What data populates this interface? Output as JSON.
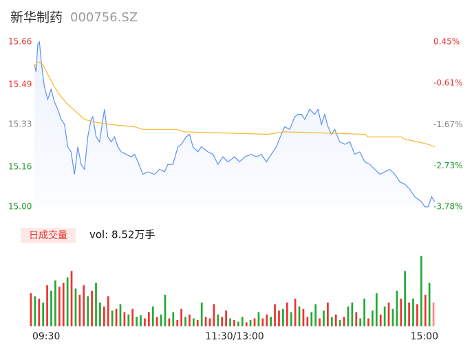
{
  "title": "新华制药",
  "code": "000756.SZ",
  "volume_button": "日成交量",
  "vol_text": "vol: 8.52万手",
  "chart_data": [
    {
      "type": "line",
      "xlim": [
        0,
        240
      ],
      "xticks": [
        {
          "value": 0,
          "label": "09:30"
        },
        {
          "value": 120,
          "label": "11:30/13:00"
        },
        {
          "value": 240,
          "label": "15:00"
        }
      ],
      "ylim": [
        15.0,
        15.66
      ],
      "yticks": [
        15.66,
        15.49,
        15.33,
        15.16,
        {
          "value": 15.0,
          "label": "15.00"
        }
      ],
      "y2lim": [
        -3.78,
        0.45
      ],
      "y2ticks": [
        {
          "value": 0.45,
          "label": "0.45%"
        },
        {
          "value": -0.61,
          "label": "-0.61%"
        },
        {
          "value": -1.67,
          "label": "-1.67%"
        },
        {
          "value": -2.73,
          "label": "-2.73%"
        },
        {
          "value": -3.78,
          "label": "-3.78%"
        }
      ],
      "tick_colors": [
        "#e33",
        "#e33",
        "#888",
        "#1a9a2a",
        "#1a9a2a"
      ],
      "series": [
        {
          "name": "price",
          "color": "#5b8ff9",
          "area": true,
          "x": [
            0,
            1,
            2,
            3,
            4,
            5,
            6,
            8,
            10,
            12,
            14,
            16,
            18,
            20,
            22,
            24,
            26,
            28,
            30,
            32,
            34,
            35,
            37,
            39,
            42,
            44,
            46,
            48,
            50,
            52,
            55,
            58,
            60,
            62,
            65,
            68,
            72,
            75,
            78,
            80,
            83,
            86,
            88,
            91,
            93,
            95,
            98,
            100,
            104,
            107,
            110,
            113,
            116,
            120,
            123,
            126,
            130,
            133,
            136,
            139,
            142,
            145,
            148,
            150,
            153,
            156,
            158,
            160,
            162,
            165,
            168,
            170,
            172,
            174,
            176,
            178,
            180,
            183,
            186,
            189,
            192,
            195,
            198,
            201,
            204,
            207,
            210,
            213,
            216,
            219,
            222,
            225,
            228,
            230,
            232,
            234,
            236,
            238,
            240
          ],
          "values": [
            15.57,
            15.54,
            15.65,
            15.66,
            15.59,
            15.53,
            15.48,
            15.43,
            15.47,
            15.42,
            15.39,
            15.35,
            15.33,
            15.24,
            15.22,
            15.13,
            15.24,
            15.17,
            15.15,
            15.28,
            15.35,
            15.36,
            15.28,
            15.26,
            15.39,
            15.28,
            15.26,
            15.28,
            15.24,
            15.22,
            15.21,
            15.2,
            15.21,
            15.18,
            15.13,
            15.14,
            15.13,
            15.15,
            15.14,
            15.17,
            15.17,
            15.24,
            15.25,
            15.28,
            15.29,
            15.24,
            15.22,
            15.24,
            15.22,
            15.21,
            15.17,
            15.2,
            15.18,
            15.2,
            15.18,
            15.2,
            15.21,
            15.2,
            15.21,
            15.18,
            15.21,
            15.24,
            15.29,
            15.32,
            15.31,
            15.36,
            15.37,
            15.37,
            15.35,
            15.39,
            15.37,
            15.39,
            15.33,
            15.37,
            15.32,
            15.29,
            15.31,
            15.26,
            15.25,
            15.26,
            15.21,
            15.22,
            15.18,
            15.17,
            15.15,
            15.13,
            15.14,
            15.15,
            15.13,
            15.1,
            15.09,
            15.07,
            15.04,
            15.03,
            15.02,
            15.0,
            15.0,
            15.04,
            15.02
          ]
        },
        {
          "name": "average",
          "color": "#f5b82e",
          "x": [
            0,
            2,
            5,
            8,
            12,
            16,
            20,
            25,
            30,
            35,
            45,
            60,
            65,
            85,
            90,
            140,
            150,
            198,
            200,
            220,
            222,
            230,
            236,
            240
          ],
          "values": [
            15.56,
            15.58,
            15.57,
            15.53,
            15.48,
            15.44,
            15.41,
            15.38,
            15.35,
            15.34,
            15.33,
            15.32,
            15.31,
            15.31,
            15.3,
            15.29,
            15.3,
            15.29,
            15.28,
            15.28,
            15.27,
            15.26,
            15.25,
            15.24
          ]
        }
      ]
    },
    {
      "type": "volume",
      "ylim": [
        0,
        100
      ],
      "values": [
        42,
        38,
        35,
        30,
        52,
        45,
        58,
        50,
        55,
        62,
        70,
        48,
        40,
        52,
        38,
        45,
        55,
        30,
        25,
        38,
        20,
        22,
        28,
        18,
        15,
        22,
        12,
        14,
        10,
        18,
        25,
        12,
        15,
        40,
        10,
        18,
        8,
        22,
        12,
        15,
        10,
        8,
        30,
        12,
        10,
        28,
        15,
        12,
        20,
        10,
        8,
        6,
        12,
        5,
        8,
        10,
        18,
        10,
        15,
        12,
        28,
        20,
        22,
        30,
        18,
        35,
        25,
        22,
        12,
        18,
        28,
        10,
        20,
        30,
        12,
        15,
        8,
        12,
        25,
        30,
        18,
        10,
        35,
        10,
        20,
        42,
        15,
        25,
        30,
        22,
        45,
        35,
        70,
        30,
        35,
        28,
        89,
        40,
        55,
        30
      ],
      "colors": [
        "#e33",
        "#2a3",
        "#e33",
        "#2a3",
        "#e33",
        "#2a3",
        "#2a3",
        "#e33",
        "#e33",
        "#2a3",
        "#e33",
        "#2a3",
        "#e33",
        "#e33",
        "#2a3",
        "#e33",
        "#2a3",
        "#2a3",
        "#e33",
        "#e33",
        "#2a3",
        "#e33",
        "#2a3",
        "#e33",
        "#2a3",
        "#e33",
        "#2a3",
        "#2a3",
        "#e33",
        "#e33",
        "#2a3",
        "#e33",
        "#2a3",
        "#2a3",
        "#e33",
        "#2a3",
        "#e33",
        "#e33",
        "#2a3",
        "#e33",
        "#2a3",
        "#e33",
        "#2a3",
        "#e33",
        "#e33",
        "#e33",
        "#2a3",
        "#e33",
        "#e33",
        "#2a3",
        "#e33",
        "#2a3",
        "#2a3",
        "#e33",
        "#2a3",
        "#e33",
        "#2a3",
        "#e33",
        "#e33",
        "#2a3",
        "#e33",
        "#e33",
        "#2a3",
        "#e33",
        "#2a3",
        "#e33",
        "#2a3",
        "#e33",
        "#e33",
        "#2a3",
        "#2a3",
        "#e33",
        "#2a3",
        "#e33",
        "#2a3",
        "#e33",
        "#2a3",
        "#e33",
        "#2a3",
        "#2a3",
        "#e33",
        "#2a3",
        "#2a3",
        "#e33",
        "#2a3",
        "#2a3",
        "#e33",
        "#2a3",
        "#e33",
        "#2a3",
        "#2a3",
        "#e33",
        "#2a3",
        "#e33",
        "#2a3",
        "#e33",
        "#2a3",
        "#e33",
        "#2a3",
        "#f88"
      ]
    }
  ]
}
